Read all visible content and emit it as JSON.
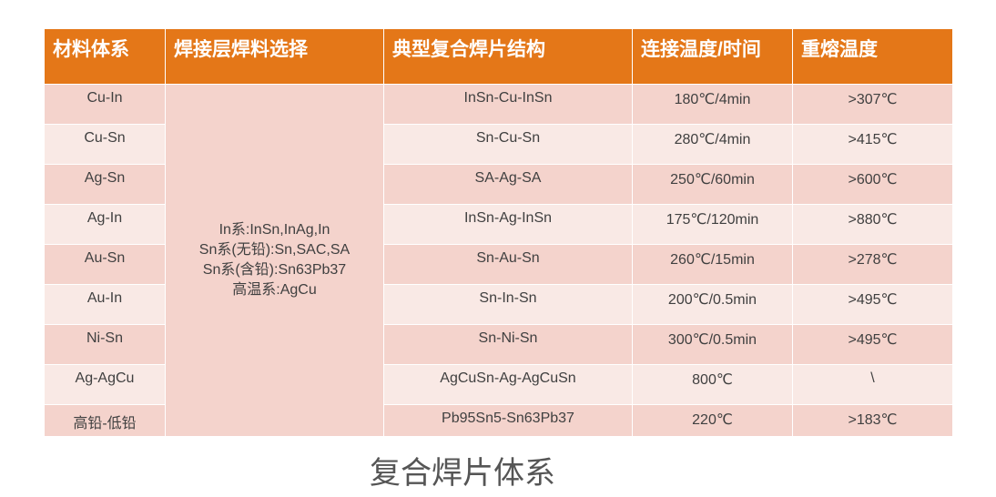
{
  "colors": {
    "header_bg": "#e47718",
    "row_odd": "#f4d3cc",
    "row_even": "#f9e9e5"
  },
  "headers": [
    "材料体系",
    "焊接层焊料选择",
    "典型复合焊片结构",
    "连接温度/时间",
    "重熔温度"
  ],
  "solder_selection": [
    "In系:InSn,InAg,In",
    "Sn系(无铅):Sn,SAC,SA",
    "Sn系(含铅):Sn63Pb37",
    "高温系:AgCu"
  ],
  "rows": [
    {
      "system": "Cu-In",
      "structure": "InSn-Cu-InSn",
      "joining": "180℃/4min",
      "remelt": ">307℃"
    },
    {
      "system": "Cu-Sn",
      "structure": "Sn-Cu-Sn",
      "joining": "280℃/4min",
      "remelt": ">415℃"
    },
    {
      "system": "Ag-Sn",
      "structure": "SA-Ag-SA",
      "joining": "250℃/60min",
      "remelt": ">600℃"
    },
    {
      "system": "Ag-In",
      "structure": "InSn-Ag-InSn",
      "joining": "175℃/120min",
      "remelt": ">880℃"
    },
    {
      "system": "Au-Sn",
      "structure": "Sn-Au-Sn",
      "joining": "260℃/15min",
      "remelt": ">278℃"
    },
    {
      "system": "Au-In",
      "structure": "Sn-In-Sn",
      "joining": "200℃/0.5min",
      "remelt": ">495℃"
    },
    {
      "system": "Ni-Sn",
      "structure": "Sn-Ni-Sn",
      "joining": "300℃/0.5min",
      "remelt": ">495℃"
    },
    {
      "system": "Ag-AgCu",
      "structure": "AgCuSn-Ag-AgCuSn",
      "joining": "800℃",
      "remelt": "\\"
    },
    {
      "system": "高铅-低铅",
      "structure": "Pb95Sn5-Sn63Pb37",
      "joining": "220℃",
      "remelt": ">183℃"
    }
  ],
  "caption": "复合焊片体系"
}
